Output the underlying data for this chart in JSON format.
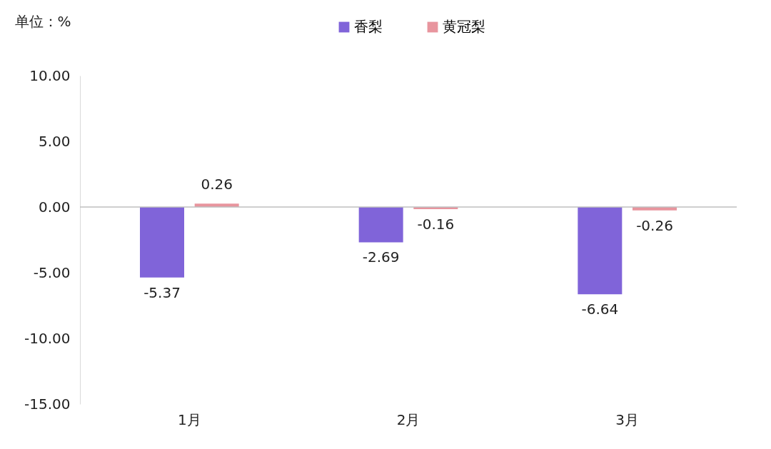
{
  "chart_data": {
    "type": "bar",
    "ylabel": "单位：%",
    "categories": [
      "1月",
      "2月",
      "3月"
    ],
    "series": [
      {
        "name": "香梨",
        "color": "#8064d9",
        "values": [
          -5.37,
          -2.69,
          -6.64
        ]
      },
      {
        "name": "黄冠梨",
        "color": "#e8959e",
        "values": [
          0.26,
          -0.16,
          -0.26
        ]
      }
    ],
    "ylim": [
      -15,
      10
    ],
    "yticks": [
      {
        "value": 10,
        "label": "10.00"
      },
      {
        "value": 5,
        "label": "5.00"
      },
      {
        "value": 0,
        "label": "0.00"
      },
      {
        "value": -5,
        "label": "-5.00"
      },
      {
        "value": -10,
        "label": "-10.00"
      },
      {
        "value": -15,
        "label": "-15.00"
      }
    ],
    "legend": "top",
    "data_labels": true
  }
}
